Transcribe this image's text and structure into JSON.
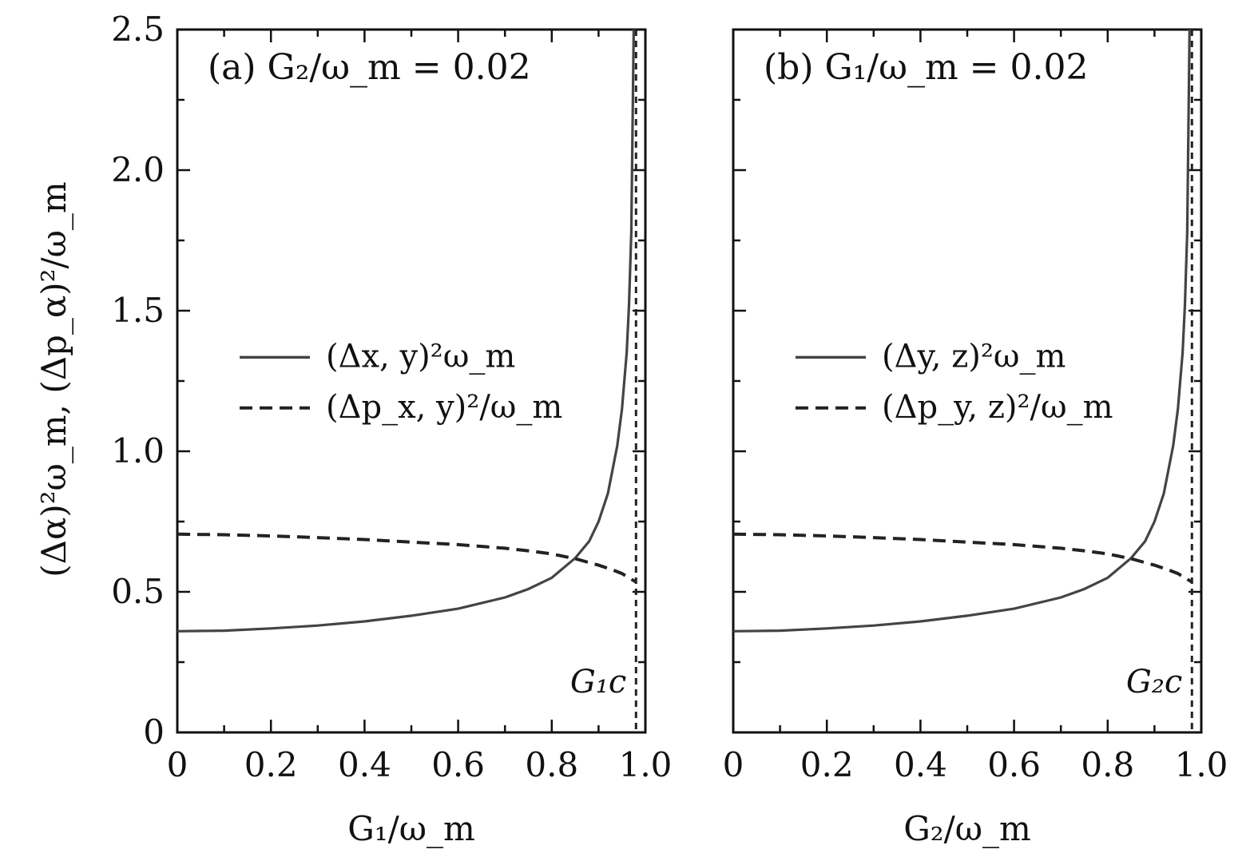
{
  "y_axis_label": "(Δα)²ω_m, (Δp_α)²/ω_m",
  "legend_solid_color": "#444444",
  "legend_dash_color": "#222222",
  "chart_data": [
    {
      "type": "line",
      "title": "(a)  G₂/ω_m = 0.02",
      "xlabel": "G₁/ω_m",
      "ylabel": "(Δα)²ω_m, (Δp_α)²/ω_m",
      "xlim": [
        0,
        1.0
      ],
      "ylim": [
        0,
        2.5
      ],
      "x_ticks": [
        "0",
        "0.2",
        "0.4",
        "0.6",
        "0.8",
        "1.0"
      ],
      "y_ticks": [
        "0",
        "0.5",
        "1.0",
        "1.5",
        "2.0",
        "2.5"
      ],
      "critical_x": 0.98,
      "critical_label": "G₁c",
      "legend_placement": "center-left",
      "series": [
        {
          "name": "(Δx, y)²ω_m",
          "style": "solid",
          "x": [
            0,
            0.1,
            0.2,
            0.3,
            0.4,
            0.5,
            0.6,
            0.7,
            0.75,
            0.8,
            0.85,
            0.88,
            0.9,
            0.92,
            0.94,
            0.95,
            0.96,
            0.965,
            0.97,
            0.975
          ],
          "y": [
            0.36,
            0.362,
            0.37,
            0.38,
            0.395,
            0.415,
            0.44,
            0.48,
            0.51,
            0.55,
            0.62,
            0.68,
            0.75,
            0.85,
            1.02,
            1.15,
            1.35,
            1.52,
            1.78,
            2.5
          ]
        },
        {
          "name": "(Δp_x, y)²/ω_m",
          "style": "dashed",
          "x": [
            0,
            0.1,
            0.2,
            0.3,
            0.4,
            0.5,
            0.6,
            0.7,
            0.75,
            0.8,
            0.85,
            0.9,
            0.93,
            0.95,
            0.97,
            0.98
          ],
          "y": [
            0.705,
            0.703,
            0.699,
            0.693,
            0.686,
            0.677,
            0.668,
            0.655,
            0.646,
            0.635,
            0.618,
            0.595,
            0.578,
            0.565,
            0.545,
            0.535
          ]
        }
      ]
    },
    {
      "type": "line",
      "title": "(b)  G₁/ω_m = 0.02",
      "xlabel": "G₂/ω_m",
      "xlim": [
        0,
        1.0
      ],
      "ylim": [
        0,
        2.5
      ],
      "x_ticks": [
        "0",
        "0.2",
        "0.4",
        "0.6",
        "0.8",
        "1.0"
      ],
      "critical_x": 0.98,
      "critical_label": "G₂c",
      "legend_placement": "center-left",
      "series": [
        {
          "name": "(Δy, z)²ω_m",
          "style": "solid",
          "x": [
            0,
            0.1,
            0.2,
            0.3,
            0.4,
            0.5,
            0.6,
            0.7,
            0.75,
            0.8,
            0.85,
            0.88,
            0.9,
            0.92,
            0.94,
            0.95,
            0.96,
            0.965,
            0.97,
            0.975
          ],
          "y": [
            0.36,
            0.362,
            0.37,
            0.38,
            0.395,
            0.415,
            0.44,
            0.48,
            0.51,
            0.55,
            0.62,
            0.68,
            0.75,
            0.85,
            1.02,
            1.15,
            1.35,
            1.52,
            1.78,
            2.5
          ]
        },
        {
          "name": "(Δp_y, z)²/ω_m",
          "style": "dashed",
          "x": [
            0,
            0.1,
            0.2,
            0.3,
            0.4,
            0.5,
            0.6,
            0.7,
            0.75,
            0.8,
            0.85,
            0.9,
            0.93,
            0.95,
            0.97,
            0.98
          ],
          "y": [
            0.705,
            0.703,
            0.699,
            0.693,
            0.686,
            0.677,
            0.668,
            0.655,
            0.646,
            0.635,
            0.618,
            0.595,
            0.578,
            0.565,
            0.545,
            0.535
          ]
        }
      ]
    }
  ]
}
